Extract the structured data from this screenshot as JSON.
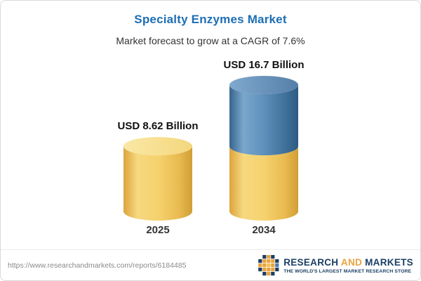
{
  "chart_data": {
    "type": "bar",
    "subtype": "3d-cylinder-stacked",
    "title": "Specialty Enzymes Market",
    "subtitle": "Market forecast to grow at a CAGR of 7.6%",
    "unit": "USD Billion",
    "cagr_percent": 7.6,
    "categories": [
      "2025",
      "2034"
    ],
    "values": [
      8.62,
      16.7
    ],
    "value_labels": [
      "USD 8.62 Billion",
      "USD 16.7 Billion"
    ],
    "ylim": [
      0,
      16.7
    ],
    "grid": false,
    "legend": false,
    "bars": [
      {
        "category": "2025",
        "total": 8.62,
        "label": "USD 8.62 Billion",
        "segments": [
          {
            "name": "base",
            "value": 8.62,
            "color": "yellow"
          }
        ]
      },
      {
        "category": "2034",
        "total": 16.7,
        "label": "USD 16.7 Billion",
        "segments": [
          {
            "name": "base",
            "value": 8.62,
            "color": "yellow"
          },
          {
            "name": "growth",
            "value": 8.08,
            "color": "blue"
          }
        ]
      }
    ]
  },
  "colors": {
    "title_blue": "#1d6eb4",
    "bar_yellow": "#f5d26e",
    "bar_blue": "#5e90bb",
    "brand_navy": "#1b3f64",
    "brand_gold": "#e8a33d"
  },
  "footer": {
    "url": "https://www.researchandmarkets.com/reports/6184485",
    "logo": {
      "brand_part1": "RESEARCH",
      "brand_part2": "AND",
      "brand_part3": "MARKETS",
      "tagline": "THE WORLD'S LARGEST MARKET RESEARCH STORE"
    }
  }
}
